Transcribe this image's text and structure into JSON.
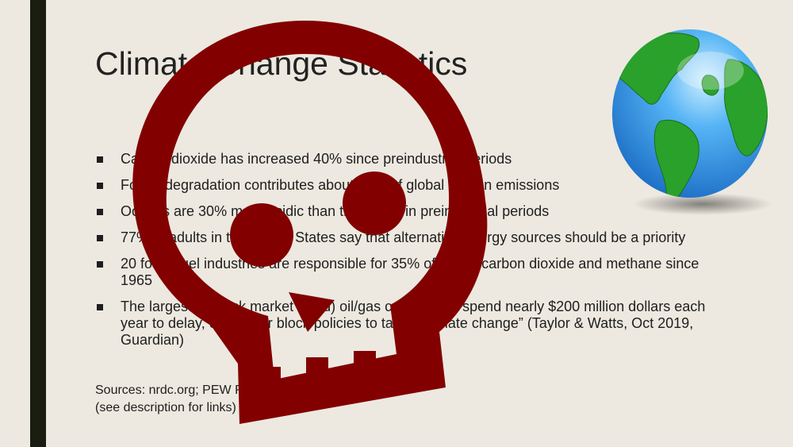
{
  "slide": {
    "title": "Climate Change Statistics",
    "bullets": [
      "Carbon dioxide has increased 40% since preindustrial periods",
      "Forest degradation contributes about 10% of global carbon emissions",
      "Oceans are 30% more acidic than they were in preindustrial periods",
      "77% of adults in the United States say that alternative energy sources should be a priority",
      "20 fossil fuel industries are responsible for 35% of global carbon dioxide and methane since 1965",
      "The largest 5 (stock market listed) oil/gas companies “spend nearly $200 million dollars each year to delay, control, or block policies to tackle climate change” (Taylor & Watts, Oct 2019, Guardian)"
    ],
    "sources_line1": "Sources: nrdc.org; PEW Research Center; Guardian",
    "sources_line2": "(see description for links)"
  },
  "overlay": {
    "icon": "skull-icon",
    "color": "#820000"
  },
  "decoration": {
    "icon": "globe-icon",
    "ocean_color": "#2a8fe0",
    "land_color": "#2aa12a"
  }
}
